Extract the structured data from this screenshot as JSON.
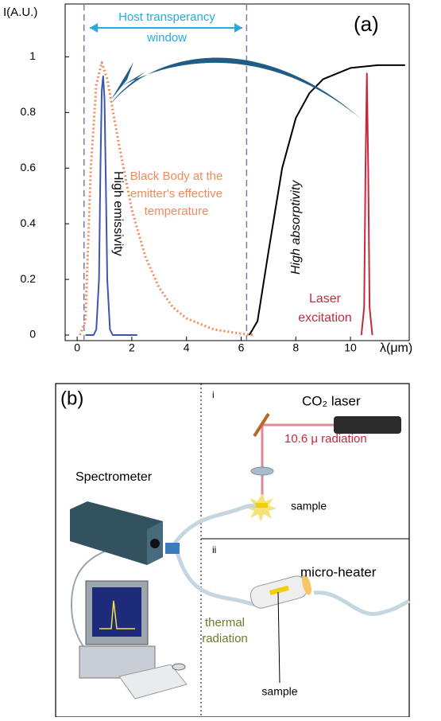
{
  "chart_data": {
    "type": "line",
    "panel_label": "(a)",
    "y_label": "I(A.U.)",
    "x_label": "λ(μm)",
    "xlim": [
      -0.44,
      12.15
    ],
    "ylim": [
      -0.02,
      1.19
    ],
    "xticks": [
      0,
      2,
      4,
      6,
      8,
      10
    ],
    "yticks": [
      0,
      0.2,
      0.4,
      0.6,
      0.8,
      1
    ],
    "reference_lines": [
      0.25,
      6.2
    ],
    "series": [
      {
        "style": "solid",
        "color": "#3a56b0",
        "x": [
          0.3,
          0.6,
          0.7,
          0.8,
          0.85,
          0.9,
          0.95,
          1.0,
          1.05,
          1.1,
          1.2,
          1.3,
          2.2
        ],
        "values": [
          0,
          0,
          0.02,
          0.2,
          0.6,
          0.88,
          0.93,
          0.85,
          0.55,
          0.2,
          0.02,
          0,
          0
        ]
      },
      {
        "style": "dotted",
        "color": "#f28a5a",
        "x": [
          0.1,
          0.3,
          0.5,
          0.7,
          0.9,
          1.1,
          1.5,
          2,
          2.5,
          3,
          3.5,
          4,
          5,
          6,
          6.5
        ],
        "values": [
          0,
          0.05,
          0.6,
          0.9,
          0.98,
          0.92,
          0.7,
          0.45,
          0.28,
          0.17,
          0.1,
          0.06,
          0.02,
          0.005,
          0
        ]
      },
      {
        "style": "solid",
        "color": "#000000",
        "x": [
          6.3,
          6.6,
          7,
          7.5,
          8,
          8.5,
          9,
          10,
          11,
          12
        ],
        "values": [
          0,
          0.05,
          0.3,
          0.6,
          0.78,
          0.87,
          0.92,
          0.96,
          0.97,
          0.97
        ]
      },
      {
        "style": "solid",
        "color": "#c8283e",
        "x": [
          10.4,
          10.5,
          10.55,
          10.6,
          10.65,
          10.7,
          10.8
        ],
        "values": [
          0,
          0.1,
          0.6,
          0.94,
          0.6,
          0.1,
          0
        ]
      }
    ],
    "annotations": {
      "window": [
        "Host transperancy",
        "window"
      ],
      "black_body": [
        "Black Body at the",
        "emitter's effective",
        "temperature"
      ],
      "emissivity": "High emissivity",
      "absorptivity": "High absorptivity",
      "laser": [
        "Laser",
        "excitation"
      ]
    }
  },
  "diagram": {
    "panel_label": "(b)",
    "part_i": "i",
    "part_ii": "ii",
    "laser": "CO₂ laser",
    "radiation": "10.6 μ radiation",
    "sample_i": "sample",
    "spectrometer": "Spectrometer",
    "heater": "micro-heater",
    "thermal": [
      "thermal",
      "radiation"
    ],
    "sample_ii": "sample"
  }
}
